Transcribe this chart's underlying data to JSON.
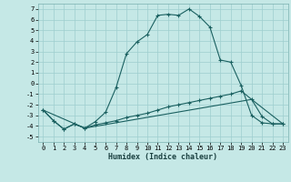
{
  "xlabel": "Humidex (Indice chaleur)",
  "background_color": "#c5e8e6",
  "grid_color": "#9ecece",
  "line_color": "#1a6060",
  "xlim": [
    -0.5,
    23.5
  ],
  "ylim": [
    -5.5,
    7.5
  ],
  "yticks": [
    -5,
    -4,
    -3,
    -2,
    -1,
    0,
    1,
    2,
    3,
    4,
    5,
    6,
    7
  ],
  "xticks": [
    0,
    1,
    2,
    3,
    4,
    5,
    6,
    7,
    8,
    9,
    10,
    11,
    12,
    13,
    14,
    15,
    16,
    17,
    18,
    19,
    20,
    21,
    22,
    23
  ],
  "series0_x": [
    0,
    1,
    2,
    3,
    4,
    5,
    6,
    7,
    8,
    9,
    10,
    11,
    12,
    13,
    14,
    15,
    16,
    17,
    18,
    19,
    20,
    21,
    22,
    23
  ],
  "series0_y": [
    -2.5,
    -3.5,
    -4.3,
    -3.8,
    -4.2,
    -3.6,
    -2.7,
    -0.4,
    2.8,
    3.9,
    4.6,
    6.4,
    6.5,
    6.4,
    7.0,
    6.3,
    5.3,
    2.2,
    2.0,
    -0.2,
    -3.0,
    -3.7,
    -3.8,
    -3.8
  ],
  "series1_x": [
    0,
    1,
    2,
    3,
    4,
    5,
    6,
    7,
    8,
    9,
    10,
    11,
    12,
    13,
    14,
    15,
    16,
    17,
    18,
    19,
    20,
    21,
    22,
    23
  ],
  "series1_y": [
    -2.5,
    -3.5,
    -4.3,
    -3.8,
    -4.2,
    -3.9,
    -3.7,
    -3.5,
    -3.2,
    -3.0,
    -2.8,
    -2.5,
    -2.2,
    -2.0,
    -1.8,
    -1.6,
    -1.4,
    -1.2,
    -1.0,
    -0.7,
    -1.5,
    -3.1,
    -3.8,
    -3.8
  ],
  "series2_x": [
    0,
    4,
    20,
    23
  ],
  "series2_y": [
    -2.5,
    -4.2,
    -1.5,
    -3.8
  ]
}
